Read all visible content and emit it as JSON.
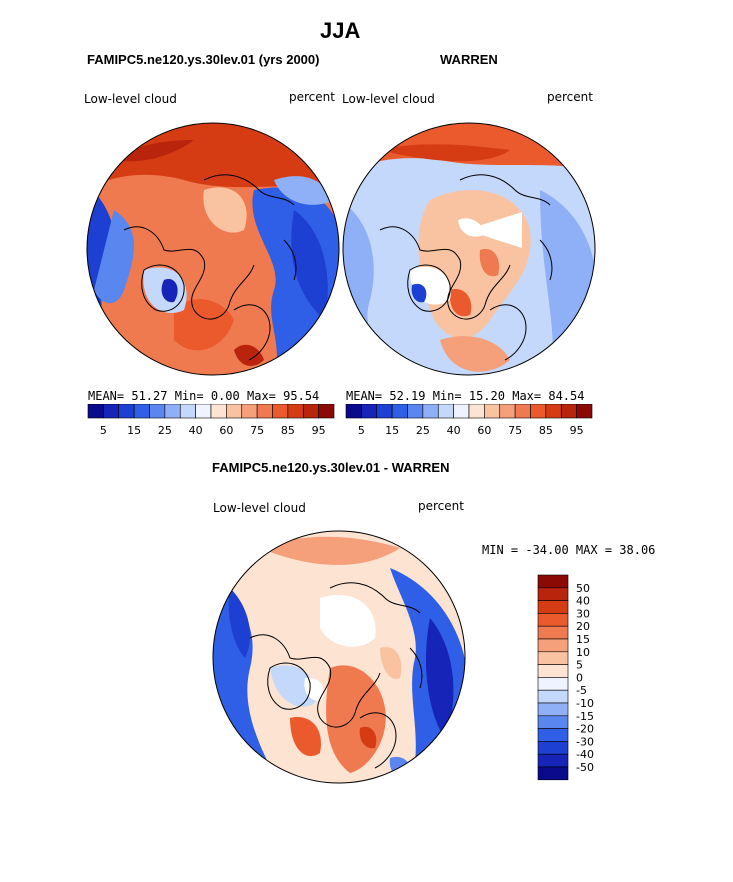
{
  "page": {
    "title": "JJA",
    "panel1_title": "FAMIPC5.ne120.ys.30lev.01 (yrs 2000)",
    "panel2_title": "WARREN",
    "diff_title": "FAMIPC5.ne120.ys.30lev.01 - WARREN"
  },
  "panels": [
    {
      "variable": "Low-level cloud",
      "units": "percent",
      "stats": {
        "mean_label": "MEAN=",
        "mean": "51.27",
        "min_label": "Min=",
        "min": "0.00",
        "max_label": "Max=",
        "max": "95.54"
      }
    },
    {
      "variable": "Low-level cloud",
      "units": "percent",
      "stats": {
        "mean_label": "MEAN=",
        "mean": "52.19",
        "min_label": "Min=",
        "min": "15.20",
        "max_label": "Max=",
        "max": "84.54"
      }
    }
  ],
  "diff": {
    "variable": "Low-level cloud",
    "units": "percent",
    "minmax_text": "MIN = -34.00 MAX =  38.06"
  },
  "chart_data": [
    {
      "type": "heatmap",
      "title": "FAMIPC5.ne120.ys.30lev.01 (yrs 2000)",
      "projection": "north polar stereographic",
      "variable": "Low-level cloud",
      "units": "percent",
      "mean": 51.27,
      "min": 0.0,
      "max": 95.54,
      "colorbar_ticks": [
        "5",
        "15",
        "25",
        "40",
        "60",
        "75",
        "85",
        "95"
      ],
      "colorbar_colors": [
        "#0a0a8c",
        "#1624b8",
        "#1d3fd2",
        "#2f5fe6",
        "#5a86f0",
        "#8fb0f6",
        "#c4d8fb",
        "#eef3ff",
        "#fde3d2",
        "#f9c3a2",
        "#f5a07a",
        "#f07a4f",
        "#ea5a2c",
        "#d63c14",
        "#b8240c",
        "#8c0a06"
      ]
    },
    {
      "type": "heatmap",
      "title": "WARREN",
      "projection": "north polar stereographic",
      "variable": "Low-level cloud",
      "units": "percent",
      "mean": 52.19,
      "min": 15.2,
      "max": 84.54,
      "colorbar_ticks": [
        "5",
        "15",
        "25",
        "40",
        "60",
        "75",
        "85",
        "95"
      ],
      "colorbar_colors": [
        "#0a0a8c",
        "#1624b8",
        "#1d3fd2",
        "#2f5fe6",
        "#5a86f0",
        "#8fb0f6",
        "#c4d8fb",
        "#eef3ff",
        "#fde3d2",
        "#f9c3a2",
        "#f5a07a",
        "#f07a4f",
        "#ea5a2c",
        "#d63c14",
        "#b8240c",
        "#8c0a06"
      ]
    },
    {
      "type": "heatmap",
      "title": "FAMIPC5.ne120.ys.30lev.01 - WARREN",
      "projection": "north polar stereographic",
      "variable": "Low-level cloud",
      "units": "percent",
      "min": -34.0,
      "max": 38.06,
      "colorbar_ticks": [
        "50",
        "40",
        "30",
        "20",
        "15",
        "10",
        "5",
        "0",
        "-5",
        "-10",
        "-15",
        "-20",
        "-30",
        "-40",
        "-50"
      ],
      "colorbar_colors": [
        "#8c0a06",
        "#b8240c",
        "#d63c14",
        "#ea5a2c",
        "#f07a4f",
        "#f5a07a",
        "#f9c3a2",
        "#fde3d2",
        "#eef3ff",
        "#c4d8fb",
        "#8fb0f6",
        "#5a86f0",
        "#2f5fe6",
        "#1d3fd2",
        "#1624b8",
        "#0a0a8c"
      ]
    }
  ]
}
